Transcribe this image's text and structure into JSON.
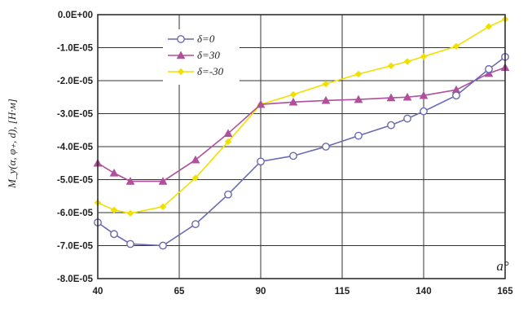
{
  "chart_data": {
    "type": "line",
    "title": "",
    "xlabel": "a°",
    "ylabel": "M_y(α, φ₊, d), [H·м]",
    "x_ticks": [
      "40",
      "65",
      "90",
      "115",
      "140",
      "165"
    ],
    "y_ticks": [
      "0.0E+00",
      "-1.0E-05",
      "-2.0E-05",
      "-3.0E-05",
      "-4.0E-05",
      "-5.0E-05",
      "-6.0E-05",
      "-7.0E-05",
      "-8.0E-05"
    ],
    "xlim": [
      40,
      165
    ],
    "ylim": [
      -8e-05,
      0
    ],
    "grid": true,
    "legend_position": "top-left",
    "series": [
      {
        "name": "δ=0",
        "color": "#6a6ab4",
        "marker": "open-circle",
        "x": [
          40,
          45,
          50,
          60,
          70,
          80,
          90,
          100,
          110,
          120,
          130,
          135,
          140,
          150,
          160,
          165
        ],
        "y": [
          -6.3e-05,
          -6.65e-05,
          -6.95e-05,
          -7e-05,
          -6.35e-05,
          -5.45e-05,
          -4.45e-05,
          -4.28e-05,
          -4e-05,
          -3.67e-05,
          -3.35e-05,
          -3.15e-05,
          -2.93e-05,
          -2.45e-05,
          -1.65e-05,
          -1.28e-05
        ]
      },
      {
        "name": "δ=30",
        "color": "#b0509c",
        "marker": "triangle",
        "x": [
          40,
          45,
          50,
          60,
          70,
          80,
          90,
          100,
          110,
          120,
          130,
          135,
          140,
          150,
          160,
          165
        ],
        "y": [
          -4.5e-05,
          -4.8e-05,
          -5.05e-05,
          -5.05e-05,
          -4.4e-05,
          -3.6e-05,
          -2.72e-05,
          -2.65e-05,
          -2.6e-05,
          -2.57e-05,
          -2.52e-05,
          -2.5e-05,
          -2.45e-05,
          -2.28e-05,
          -1.78e-05,
          -1.6e-05
        ]
      },
      {
        "name": "δ=-30",
        "color": "#f0e000",
        "marker": "diamond",
        "x": [
          40,
          45,
          50,
          60,
          70,
          80,
          90,
          100,
          110,
          120,
          130,
          135,
          140,
          150,
          160,
          165
        ],
        "y": [
          -5.7e-05,
          -5.92e-05,
          -6.02e-05,
          -5.82e-05,
          -4.95e-05,
          -3.85e-05,
          -2.72e-05,
          -2.42e-05,
          -2.1e-05,
          -1.8e-05,
          -1.55e-05,
          -1.42e-05,
          -1.27e-05,
          -9.6e-06,
          -3.6e-06,
          -1.4e-06
        ]
      }
    ]
  }
}
